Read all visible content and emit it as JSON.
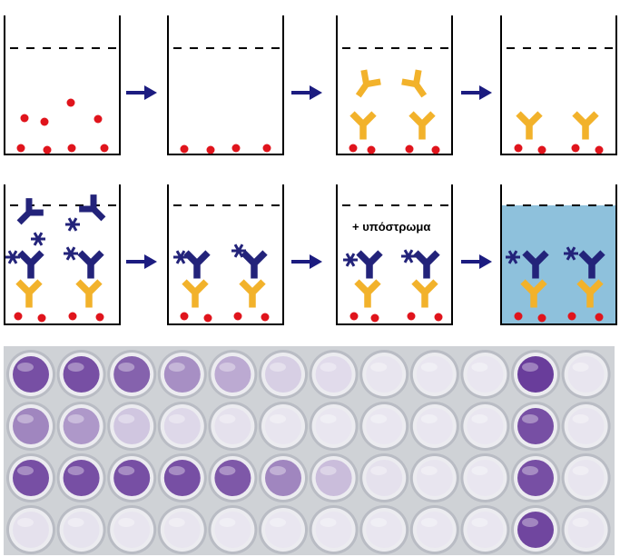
{
  "substrate_label": "+ υπόστρωμα",
  "colors": {
    "outline": "#000000",
    "antigen": "#e0141c",
    "capture_antibody": "#f2b22b",
    "detection_antibody": "#23237a",
    "arrow": "#1c1c80",
    "colored_solution": "#8ec1dc",
    "plate_background": "#cfd2d6",
    "well_rim": "#ececf0"
  },
  "plate": {
    "row_intensities": [
      [
        0.85,
        0.85,
        0.75,
        0.5,
        0.35,
        0.15,
        0.08,
        0.03,
        0.02,
        0.02,
        0.95,
        0.03
      ],
      [
        0.55,
        0.45,
        0.2,
        0.1,
        0.05,
        0.03,
        0.02,
        0.02,
        0.02,
        0.02,
        0.85,
        0.03
      ],
      [
        0.85,
        0.85,
        0.85,
        0.85,
        0.8,
        0.55,
        0.25,
        0.05,
        0.03,
        0.02,
        0.85,
        0.03
      ],
      [
        0.05,
        0.04,
        0.03,
        0.03,
        0.02,
        0.02,
        0.02,
        0.02,
        0.02,
        0.02,
        0.9,
        0.03
      ]
    ]
  }
}
